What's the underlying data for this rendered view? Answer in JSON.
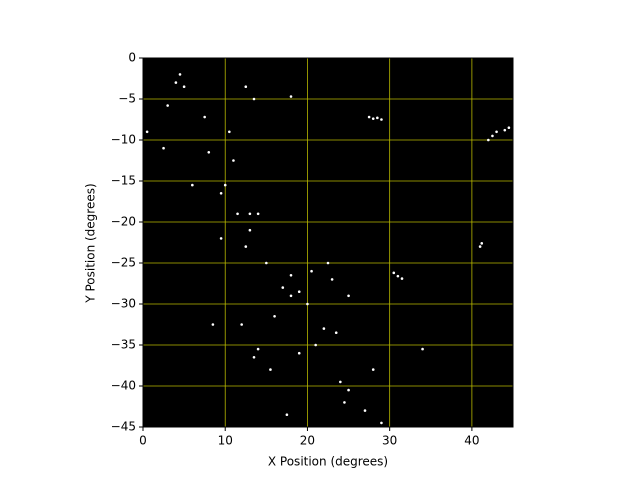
{
  "chart_data": {
    "type": "scatter",
    "x_label": "X Position (degrees)",
    "y_label": "Y Position (degrees)",
    "xlim": [
      0,
      45
    ],
    "ylim": [
      -45,
      0
    ],
    "xticks": [
      0,
      10,
      20,
      30,
      40
    ],
    "yticks": [
      {
        "value": 0,
        "label": "0"
      },
      {
        "value": -5,
        "label": "−5"
      },
      {
        "value": -10,
        "label": "−10"
      },
      {
        "value": -15,
        "label": "−15"
      },
      {
        "value": -20,
        "label": "−20"
      },
      {
        "value": -25,
        "label": "−25"
      },
      {
        "value": -30,
        "label": "−30"
      },
      {
        "value": -35,
        "label": "−35"
      },
      {
        "value": -40,
        "label": "−40"
      },
      {
        "value": -45,
        "label": "−45"
      }
    ],
    "grid": true,
    "grid_color": "#b8b800",
    "background": "#000000",
    "series": [
      {
        "color": "#ffffff",
        "x": [
          27.5,
          28,
          28.5,
          29,
          42.5,
          43,
          42,
          44.5,
          44,
          41,
          41.2,
          30.5,
          31,
          31.5,
          4,
          4.5,
          5,
          3,
          7.5,
          10.5,
          8,
          11,
          10,
          9.5,
          11.5,
          13,
          14,
          9.5,
          12.5,
          13,
          15,
          18,
          20.5,
          17,
          18,
          19,
          20,
          16,
          22,
          23.5,
          21,
          14,
          13.5,
          15.5,
          19,
          24,
          24.5,
          25,
          27,
          29,
          12,
          23,
          25,
          22.5,
          8.5,
          17.5,
          34,
          28,
          6,
          2.5,
          0.5,
          13.5,
          18,
          12.5
        ],
        "y": [
          -7.2,
          -7.4,
          -7.3,
          -7.5,
          -9.5,
          -9,
          -10,
          -8.5,
          -8.8,
          -23,
          -22.6,
          -26.2,
          -26.6,
          -26.9,
          -3,
          -2,
          -3.5,
          -5.8,
          -7.2,
          -9,
          -11.5,
          -12.5,
          -15.5,
          -16.5,
          -19,
          -19,
          -19,
          -22,
          -23,
          -21,
          -25,
          -26.5,
          -26,
          -28,
          -29,
          -28.5,
          -30,
          -31.5,
          -33,
          -33.5,
          -35,
          -35.5,
          -36.5,
          -38,
          -36,
          -39.5,
          -42,
          -40.5,
          -43,
          -44.5,
          -32.5,
          -27,
          -29,
          -25,
          -32.5,
          -43.5,
          -35.5,
          -38,
          -15.5,
          -11,
          -9,
          -5,
          -4.7,
          -3.5
        ]
      }
    ]
  }
}
